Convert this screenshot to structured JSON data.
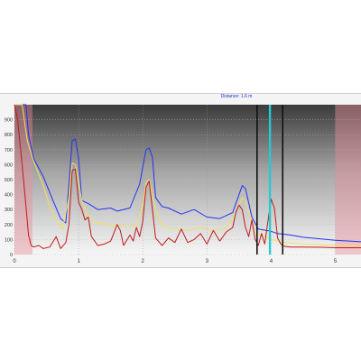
{
  "marker_readout": "Distance: 1.6 m",
  "colors": {
    "blue_series": "#2233ee",
    "yellow_series": "#f1e15a",
    "red_series": "#c21a1a",
    "cursor": "#17d0d8",
    "excluded_region": "#e88f98",
    "cursor_bracket": "#111111"
  },
  "chart_data": {
    "type": "line",
    "xlim": [
      0,
      5.4
    ],
    "ylim": [
      0,
      1000
    ],
    "x_ticks": [
      "0",
      "1",
      "2",
      "3",
      "4",
      "5"
    ],
    "y_ticks": [
      "0",
      "100",
      "200",
      "300",
      "400",
      "500",
      "600",
      "700",
      "800",
      "900"
    ],
    "grid": true,
    "cursor_x": 3.98,
    "bracket_x": [
      3.78,
      4.18
    ],
    "shaded_regions": [
      [
        0,
        0.28
      ],
      [
        5.0,
        5.4
      ]
    ],
    "series": [
      {
        "color": "blue",
        "x": [
          0,
          0.18,
          0.22,
          0.3,
          0.45,
          0.6,
          0.72,
          0.8,
          0.85,
          0.9,
          0.95,
          1.0,
          1.05,
          1.15,
          1.3,
          1.5,
          1.6,
          1.8,
          1.95,
          2.05,
          2.1,
          2.15,
          2.2,
          2.3,
          2.4,
          2.6,
          2.8,
          3.0,
          3.2,
          3.4,
          3.5,
          3.55,
          3.6,
          3.7,
          3.8,
          4.0,
          4.1,
          4.3,
          4.5,
          5.0,
          5.4
        ],
        "values": [
          1000,
          1000,
          800,
          640,
          520,
          360,
          240,
          210,
          470,
          760,
          770,
          640,
          360,
          340,
          300,
          310,
          290,
          310,
          470,
          700,
          710,
          650,
          380,
          320,
          310,
          270,
          300,
          250,
          240,
          280,
          400,
          460,
          440,
          250,
          170,
          155,
          140,
          130,
          115,
          95,
          85
        ]
      },
      {
        "color": "yellow",
        "x": [
          0,
          0.12,
          0.2,
          0.3,
          0.45,
          0.55,
          0.65,
          0.75,
          0.85,
          0.9,
          0.95,
          1.05,
          1.15,
          1.3,
          1.5,
          1.7,
          1.9,
          2.0,
          2.05,
          2.1,
          2.2,
          2.3,
          2.5,
          2.7,
          2.9,
          3.1,
          3.3,
          3.45,
          3.55,
          3.6,
          3.7,
          3.8,
          4.0,
          4.2,
          4.5,
          5.0,
          5.4
        ],
        "values": [
          1000,
          1000,
          760,
          620,
          460,
          320,
          230,
          170,
          380,
          610,
          600,
          360,
          250,
          210,
          200,
          190,
          190,
          330,
          480,
          500,
          300,
          190,
          170,
          160,
          180,
          160,
          170,
          280,
          380,
          360,
          200,
          140,
          100,
          80,
          70,
          62,
          58
        ]
      },
      {
        "color": "red",
        "x": [
          0,
          0.05,
          0.12,
          0.18,
          0.22,
          0.26,
          0.3,
          0.38,
          0.45,
          0.55,
          0.65,
          0.72,
          0.8,
          0.85,
          0.9,
          0.95,
          1.0,
          1.05,
          1.1,
          1.15,
          1.2,
          1.3,
          1.4,
          1.5,
          1.6,
          1.65,
          1.7,
          1.8,
          1.85,
          1.9,
          1.95,
          2.0,
          2.05,
          2.1,
          2.15,
          2.2,
          2.3,
          2.4,
          2.5,
          2.6,
          2.7,
          2.8,
          2.9,
          3.0,
          3.1,
          3.2,
          3.3,
          3.4,
          3.45,
          3.5,
          3.55,
          3.6,
          3.65,
          3.7,
          3.75,
          3.8,
          3.85,
          3.9,
          4.0,
          4.05,
          4.1,
          4.15,
          4.2,
          4.3,
          4.5,
          4.8,
          5.0,
          5.2,
          5.4
        ],
        "values": [
          1000,
          900,
          600,
          320,
          130,
          60,
          50,
          60,
          40,
          50,
          120,
          40,
          80,
          200,
          560,
          570,
          350,
          300,
          230,
          250,
          120,
          60,
          70,
          90,
          200,
          160,
          60,
          130,
          90,
          180,
          120,
          220,
          450,
          490,
          300,
          110,
          60,
          110,
          80,
          170,
          80,
          100,
          140,
          70,
          160,
          90,
          150,
          180,
          280,
          330,
          300,
          180,
          120,
          230,
          100,
          60,
          140,
          70,
          370,
          310,
          110,
          70,
          55,
          50,
          50,
          48,
          45,
          45,
          45
        ]
      }
    ]
  }
}
